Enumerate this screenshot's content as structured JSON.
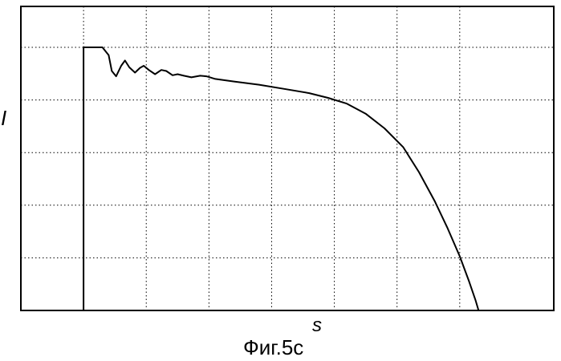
{
  "figure": {
    "caption": "Фиг.5с"
  },
  "chart_data": {
    "type": "line",
    "title": "",
    "xlabel": "s",
    "ylabel": "I",
    "xlim": [
      0,
      8.5
    ],
    "ylim": [
      0,
      5
    ],
    "grid": true,
    "grid_style": "dotted",
    "color": "#000000",
    "series": [
      {
        "values": [
          [
            1.0,
            0.0
          ],
          [
            1.0,
            5.0
          ],
          [
            1.1,
            5.0
          ],
          [
            1.2,
            5.0
          ],
          [
            1.3,
            5.0
          ],
          [
            1.4,
            4.85
          ],
          [
            1.45,
            4.55
          ],
          [
            1.52,
            4.45
          ],
          [
            1.6,
            4.65
          ],
          [
            1.66,
            4.75
          ],
          [
            1.73,
            4.62
          ],
          [
            1.82,
            4.52
          ],
          [
            1.9,
            4.61
          ],
          [
            1.96,
            4.65
          ],
          [
            2.04,
            4.57
          ],
          [
            2.14,
            4.49
          ],
          [
            2.24,
            4.57
          ],
          [
            2.32,
            4.55
          ],
          [
            2.42,
            4.47
          ],
          [
            2.5,
            4.49
          ],
          [
            2.6,
            4.46
          ],
          [
            2.72,
            4.43
          ],
          [
            2.86,
            4.46
          ],
          [
            2.96,
            4.45
          ],
          [
            3.1,
            4.4
          ],
          [
            3.4,
            4.35
          ],
          [
            3.8,
            4.29
          ],
          [
            4.2,
            4.21
          ],
          [
            4.6,
            4.13
          ],
          [
            4.9,
            4.04
          ],
          [
            5.2,
            3.93
          ],
          [
            5.5,
            3.74
          ],
          [
            5.8,
            3.46
          ],
          [
            6.1,
            3.1
          ],
          [
            6.35,
            2.63
          ],
          [
            6.6,
            2.08
          ],
          [
            6.8,
            1.58
          ],
          [
            7.0,
            1.03
          ],
          [
            7.15,
            0.55
          ],
          [
            7.25,
            0.2
          ],
          [
            7.3,
            0.0
          ]
        ]
      }
    ]
  }
}
